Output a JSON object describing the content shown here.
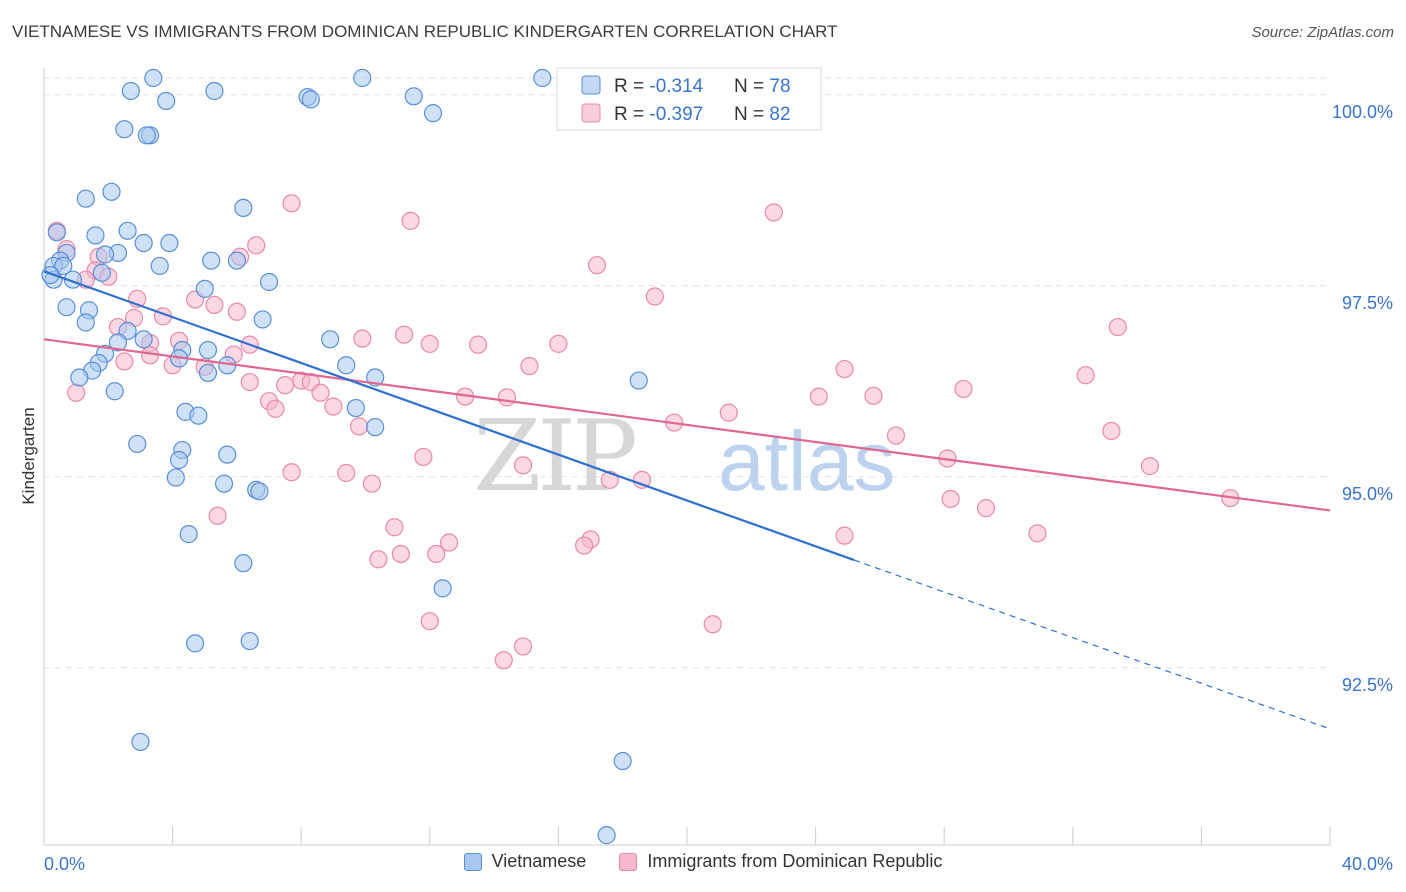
{
  "header": {
    "title": "VIETNAMESE VS IMMIGRANTS FROM DOMINICAN REPUBLIC KINDERGARTEN CORRELATION CHART",
    "source": "Source: ZipAtlas.com"
  },
  "watermark": {
    "zip": "ZIP",
    "atlas": "atlas"
  },
  "colors": {
    "blue_fill": "#a8c8f0",
    "blue_stroke": "#5a8fd8",
    "blue_line": "#3070d0",
    "pink_fill": "#f8b8cc",
    "pink_stroke": "#e88aa8",
    "pink_line": "#e06890",
    "value_text": "#3a74cc",
    "grid": "#e2e2e2"
  },
  "legend_top": {
    "rows": [
      {
        "r_label": "R = ",
        "r_value": "-0.314",
        "n_label": "N = ",
        "n_value": "78"
      },
      {
        "r_label": "R = ",
        "r_value": "-0.397",
        "n_label": "N = ",
        "n_value": "82"
      }
    ]
  },
  "chart_data": {
    "type": "scatter",
    "title": "VIETNAMESE VS IMMIGRANTS FROM DOMINICAN REPUBLIC KINDERGARTEN CORRELATION CHART",
    "xlabel": "",
    "ylabel": "Kindergarten",
    "xlim": [
      0,
      40
    ],
    "ylim": [
      90.2,
      100.4
    ],
    "x_tick_labels": [
      "0.0%",
      "40.0%"
    ],
    "y_ticks": [
      92.5,
      95.0,
      97.5,
      100.0
    ],
    "y_tick_labels": [
      "92.5%",
      "95.0%",
      "97.5%",
      "100.0%"
    ],
    "grid": true,
    "legend": "top-center",
    "series": [
      {
        "name": "Vietnamese",
        "r": -0.314,
        "n": 78,
        "trend": {
          "x0": 0,
          "y0": 97.69,
          "x1": 25.2,
          "y1": 93.91,
          "dash_x1": 40,
          "dash_y1": 91.7
        },
        "points": [
          [
            3.4,
            100.22
          ],
          [
            9.9,
            100.22
          ],
          [
            15.5,
            100.22
          ],
          [
            2.7,
            100.05
          ],
          [
            5.3,
            100.05
          ],
          [
            8.2,
            99.97
          ],
          [
            8.3,
            99.94
          ],
          [
            3.8,
            99.92
          ],
          [
            12.1,
            99.76
          ],
          [
            2.5,
            99.55
          ],
          [
            3.3,
            99.47
          ],
          [
            3.2,
            99.47
          ],
          [
            2.1,
            98.73
          ],
          [
            1.3,
            98.64
          ],
          [
            6.2,
            98.52
          ],
          [
            0.4,
            98.2
          ],
          [
            1.6,
            98.16
          ],
          [
            2.6,
            98.22
          ],
          [
            3.1,
            98.06
          ],
          [
            3.9,
            98.06
          ],
          [
            0.7,
            97.93
          ],
          [
            0.5,
            97.83
          ],
          [
            2.3,
            97.93
          ],
          [
            1.9,
            97.91
          ],
          [
            5.2,
            97.83
          ],
          [
            6.0,
            97.83
          ],
          [
            0.3,
            97.76
          ],
          [
            0.6,
            97.76
          ],
          [
            3.6,
            97.76
          ],
          [
            1.8,
            97.67
          ],
          [
            0.3,
            97.58
          ],
          [
            0.2,
            97.64
          ],
          [
            0.9,
            97.58
          ],
          [
            5.0,
            97.46
          ],
          [
            0.7,
            97.22
          ],
          [
            1.4,
            97.18
          ],
          [
            6.8,
            97.06
          ],
          [
            1.3,
            97.02
          ],
          [
            2.6,
            96.91
          ],
          [
            2.3,
            96.76
          ],
          [
            4.3,
            96.66
          ],
          [
            5.1,
            96.66
          ],
          [
            1.9,
            96.61
          ],
          [
            4.2,
            96.55
          ],
          [
            1.7,
            96.49
          ],
          [
            1.5,
            96.39
          ],
          [
            5.7,
            96.46
          ],
          [
            9.4,
            96.46
          ],
          [
            5.1,
            96.36
          ],
          [
            10.3,
            96.3
          ],
          [
            1.1,
            96.3
          ],
          [
            2.2,
            96.12
          ],
          [
            18.5,
            96.26
          ],
          [
            4.4,
            95.85
          ],
          [
            4.8,
            95.8
          ],
          [
            10.3,
            95.65
          ],
          [
            2.9,
            95.43
          ],
          [
            4.3,
            95.35
          ],
          [
            5.7,
            95.29
          ],
          [
            4.2,
            95.22
          ],
          [
            4.1,
            94.99
          ],
          [
            5.6,
            94.91
          ],
          [
            6.6,
            94.83
          ],
          [
            6.7,
            94.81
          ],
          [
            4.5,
            94.25
          ],
          [
            6.2,
            93.87
          ],
          [
            12.4,
            93.54
          ],
          [
            4.7,
            92.82
          ],
          [
            6.4,
            92.85
          ],
          [
            3.0,
            91.53
          ],
          [
            18.0,
            91.28
          ],
          [
            17.5,
            90.31
          ],
          [
            8.9,
            96.8
          ],
          [
            11.5,
            99.98
          ],
          [
            16.8,
            100.22
          ],
          [
            7.0,
            97.55
          ],
          [
            3.1,
            96.8
          ],
          [
            9.7,
            95.9
          ]
        ]
      },
      {
        "name": "Immigrants from Dominican Republic",
        "r": -0.397,
        "n": 82,
        "trend": {
          "x0": 0,
          "y0": 96.8,
          "x1": 40,
          "y1": 94.56
        },
        "points": [
          [
            0.4,
            98.22
          ],
          [
            7.7,
            98.58
          ],
          [
            11.4,
            98.35
          ],
          [
            22.7,
            98.46
          ],
          [
            6.6,
            98.03
          ],
          [
            0.7,
            97.98
          ],
          [
            1.7,
            97.88
          ],
          [
            6.1,
            97.88
          ],
          [
            17.2,
            97.77
          ],
          [
            1.6,
            97.7
          ],
          [
            2.0,
            97.62
          ],
          [
            1.3,
            97.58
          ],
          [
            2.9,
            97.33
          ],
          [
            4.7,
            97.32
          ],
          [
            5.3,
            97.25
          ],
          [
            19.0,
            97.36
          ],
          [
            6.0,
            97.16
          ],
          [
            2.8,
            97.08
          ],
          [
            2.3,
            96.96
          ],
          [
            11.2,
            96.86
          ],
          [
            12.0,
            96.74
          ],
          [
            9.9,
            96.81
          ],
          [
            4.2,
            96.78
          ],
          [
            3.3,
            96.75
          ],
          [
            6.4,
            96.73
          ],
          [
            13.5,
            96.73
          ],
          [
            16.0,
            96.74
          ],
          [
            33.4,
            96.96
          ],
          [
            3.3,
            96.59
          ],
          [
            2.5,
            96.51
          ],
          [
            4.0,
            96.46
          ],
          [
            5.0,
            96.44
          ],
          [
            24.9,
            96.41
          ],
          [
            6.4,
            96.24
          ],
          [
            8.0,
            96.26
          ],
          [
            8.3,
            96.24
          ],
          [
            7.5,
            96.2
          ],
          [
            32.4,
            96.33
          ],
          [
            28.6,
            96.15
          ],
          [
            7.0,
            95.99
          ],
          [
            13.1,
            96.05
          ],
          [
            14.4,
            96.04
          ],
          [
            24.1,
            96.05
          ],
          [
            25.8,
            96.06
          ],
          [
            7.2,
            95.89
          ],
          [
            9.0,
            95.92
          ],
          [
            21.3,
            95.84
          ],
          [
            9.8,
            95.66
          ],
          [
            19.6,
            95.71
          ],
          [
            33.2,
            95.6
          ],
          [
            26.5,
            95.54
          ],
          [
            11.8,
            95.26
          ],
          [
            28.1,
            95.24
          ],
          [
            14.9,
            95.15
          ],
          [
            34.4,
            95.14
          ],
          [
            7.7,
            95.06
          ],
          [
            9.4,
            95.05
          ],
          [
            10.2,
            94.91
          ],
          [
            17.6,
            94.96
          ],
          [
            18.6,
            94.96
          ],
          [
            28.2,
            94.71
          ],
          [
            29.3,
            94.59
          ],
          [
            36.9,
            94.72
          ],
          [
            5.4,
            94.49
          ],
          [
            10.9,
            94.34
          ],
          [
            24.9,
            94.23
          ],
          [
            30.9,
            94.26
          ],
          [
            17.0,
            94.18
          ],
          [
            12.6,
            94.14
          ],
          [
            16.8,
            94.1
          ],
          [
            12.2,
            93.99
          ],
          [
            11.1,
            93.99
          ],
          [
            10.4,
            93.92
          ],
          [
            12.0,
            93.11
          ],
          [
            20.8,
            93.07
          ],
          [
            14.9,
            92.78
          ],
          [
            14.3,
            92.6
          ],
          [
            1.0,
            96.1
          ],
          [
            3.7,
            97.1
          ],
          [
            5.9,
            96.6
          ],
          [
            8.6,
            96.1
          ],
          [
            15.1,
            96.45
          ]
        ]
      }
    ]
  }
}
